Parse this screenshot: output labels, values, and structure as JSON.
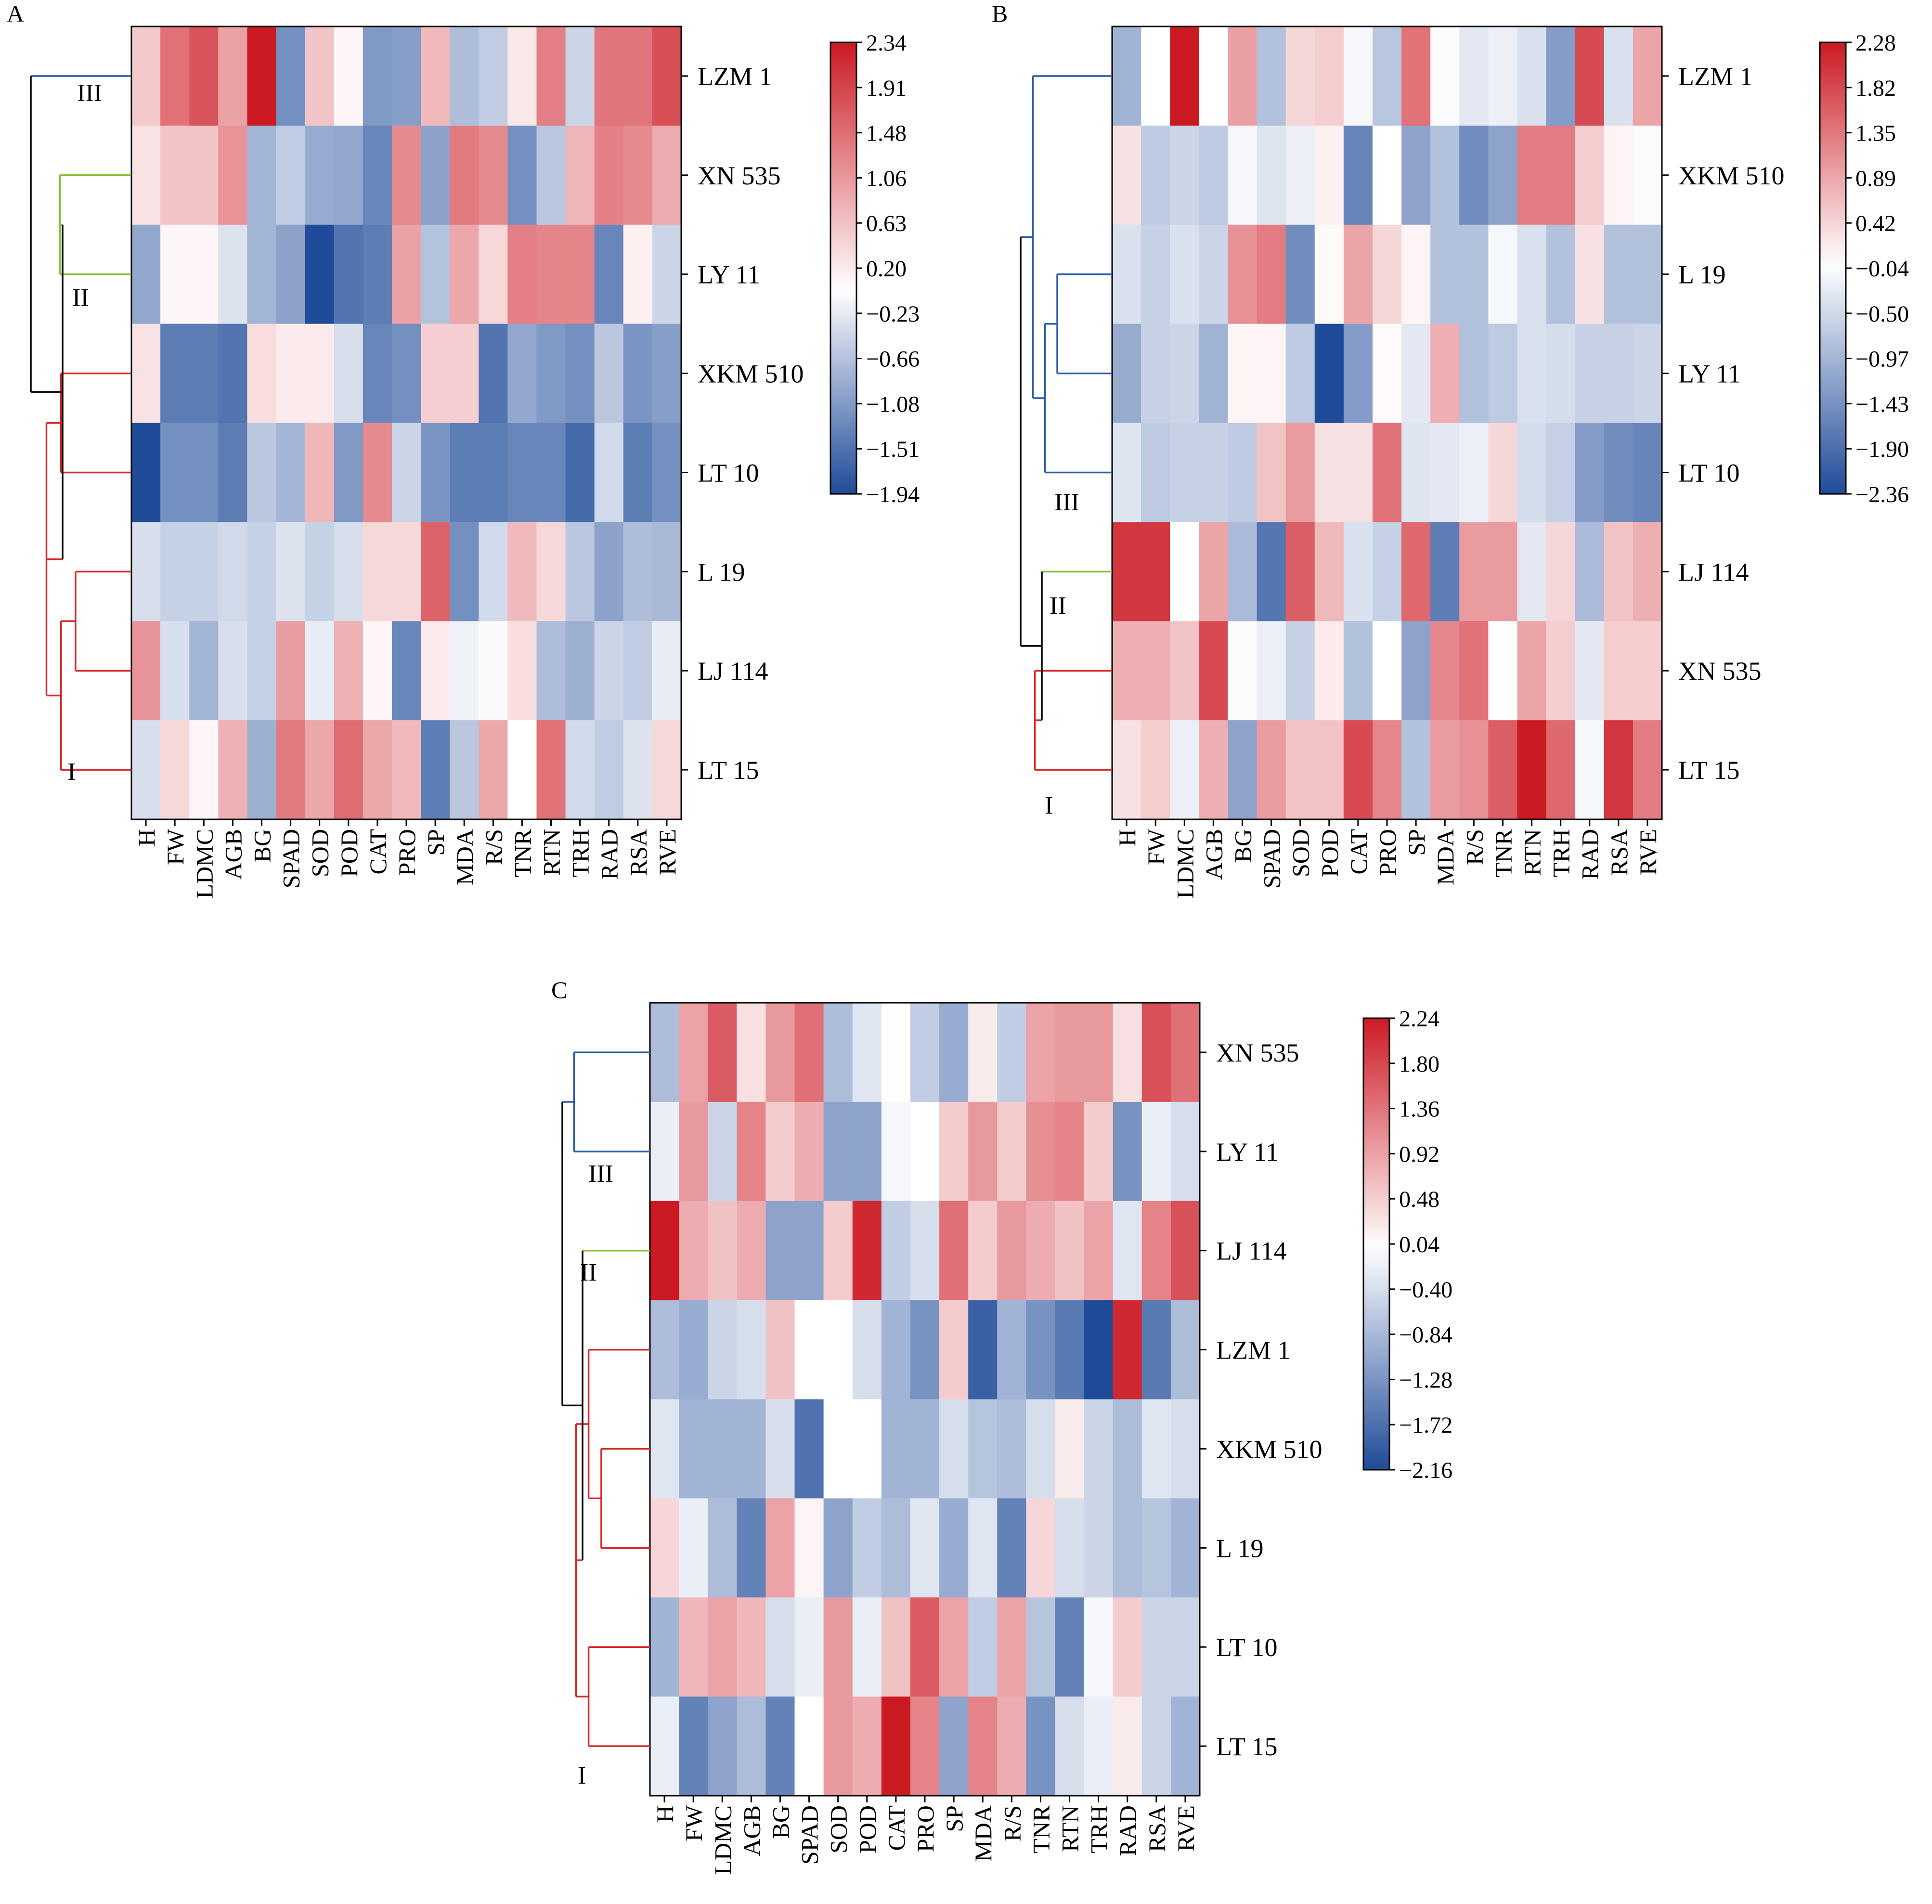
{
  "chart_data": [
    {
      "type": "heatmap",
      "panel_label": "A",
      "columns": [
        "H",
        "FW",
        "LDMC",
        "AGB",
        "BG",
        "SPAD",
        "SOD",
        "POD",
        "CAT",
        "PRO",
        "SP",
        "MDA",
        "R/S",
        "TNR",
        "RTN",
        "TRH",
        "RAD",
        "RSA",
        "RVE"
      ],
      "rows": [
        "LZM 1",
        "XN 535",
        "LY 11",
        "XKM 510",
        "LT 10",
        "L 19",
        "LJ 114",
        "LT 15"
      ],
      "values": [
        [
          0.55,
          1.45,
          1.75,
          0.95,
          2.34,
          -1.2,
          0.6,
          0.1,
          -1.1,
          -1.05,
          0.7,
          -0.7,
          -0.55,
          0.25,
          1.3,
          -0.45,
          1.4,
          1.4,
          1.8
        ],
        [
          0.3,
          0.6,
          0.6,
          1.1,
          -0.8,
          -0.55,
          -0.9,
          -0.95,
          -1.3,
          1.2,
          -1.0,
          1.35,
          1.2,
          -1.2,
          -0.6,
          0.75,
          1.3,
          1.2,
          0.85
        ],
        [
          -0.95,
          0.1,
          0.1,
          -0.3,
          -0.8,
          -1.0,
          -1.94,
          -1.5,
          -1.4,
          0.95,
          -0.65,
          0.9,
          0.4,
          1.3,
          1.25,
          1.25,
          -1.3,
          0.15,
          -0.45
        ],
        [
          0.3,
          -1.4,
          -1.4,
          -1.5,
          0.35,
          0.2,
          0.2,
          -0.35,
          -1.3,
          -1.2,
          0.5,
          0.5,
          -1.5,
          -0.95,
          -1.1,
          -1.2,
          -0.6,
          -1.15,
          -1.05
        ],
        [
          -1.94,
          -1.2,
          -1.2,
          -1.4,
          -0.6,
          -0.8,
          0.75,
          -1.1,
          1.2,
          -0.45,
          -1.15,
          -1.4,
          -1.4,
          -1.3,
          -1.3,
          -1.6,
          -0.4,
          -1.4,
          -1.2
        ],
        [
          -0.35,
          -0.5,
          -0.5,
          -0.4,
          -0.5,
          -0.3,
          -0.5,
          -0.35,
          0.4,
          0.4,
          1.6,
          -1.2,
          -0.4,
          0.7,
          0.4,
          -0.6,
          -1.0,
          -0.7,
          -0.75
        ],
        [
          1.1,
          -0.35,
          -0.8,
          -0.35,
          -0.5,
          1.0,
          -0.2,
          0.8,
          0.1,
          -1.3,
          0.2,
          -0.15,
          -0.05,
          0.35,
          -0.7,
          -0.85,
          -0.45,
          -0.55,
          -0.2
        ],
        [
          -0.35,
          0.4,
          0.1,
          0.8,
          -0.85,
          1.35,
          0.9,
          1.5,
          0.9,
          0.7,
          -1.4,
          -0.6,
          0.9,
          0.0,
          1.45,
          -0.4,
          -0.55,
          -0.3,
          0.4
        ]
      ],
      "scale": {
        "min": -1.94,
        "max": 2.34
      },
      "colorbar_ticks": [
        "2.34",
        "1.91",
        "1.48",
        "1.06",
        "0.63",
        "0.20",
        "−0.23",
        "−0.66",
        "−1.08",
        "−1.51",
        "−1.94"
      ],
      "cluster_labels": [
        "III",
        "II",
        "I"
      ],
      "colors": {
        "low": "#1f4b99",
        "mid": "#ffffff",
        "high": "#cc1a23",
        "cluster_I": "#d62728",
        "cluster_II": "#7fbf2d",
        "cluster_III": "#2a5caa",
        "root": "#000000"
      }
    },
    {
      "type": "heatmap",
      "panel_label": "B",
      "columns": [
        "H",
        "FW",
        "LDMC",
        "AGB",
        "BG",
        "SPAD",
        "SOD",
        "POD",
        "CAT",
        "PRO",
        "SP",
        "MDA",
        "R/S",
        "TNR",
        "RTN",
        "TRH",
        "RAD",
        "RSA",
        "RVE"
      ],
      "rows": [
        "LZM 1",
        "XKM 510",
        "L 19",
        "LY 11",
        "LT 10",
        "LJ 114",
        "XN 535",
        "LT 15"
      ],
      "values": [
        [
          -1.0,
          0.0,
          2.28,
          0.0,
          0.95,
          -0.8,
          0.4,
          0.5,
          -0.1,
          -0.75,
          1.4,
          -0.05,
          -0.3,
          -0.2,
          -0.4,
          -1.3,
          1.8,
          -0.4,
          0.9
        ],
        [
          0.3,
          -0.7,
          -0.55,
          -0.7,
          -0.1,
          -0.35,
          -0.2,
          0.15,
          -1.6,
          0.0,
          -1.2,
          -0.8,
          -1.5,
          -1.2,
          1.3,
          1.3,
          0.5,
          0.1,
          -0.05
        ],
        [
          -0.4,
          -0.6,
          -0.4,
          -0.55,
          1.1,
          1.3,
          -1.5,
          0.05,
          0.9,
          0.4,
          0.1,
          -0.8,
          -0.8,
          -0.1,
          -0.4,
          -0.8,
          0.3,
          -0.8,
          -0.8
        ],
        [
          -1.1,
          -0.6,
          -0.55,
          -1.0,
          0.1,
          0.1,
          -0.7,
          -2.36,
          -1.3,
          0.05,
          -0.3,
          0.8,
          -0.8,
          -0.7,
          -0.4,
          -0.45,
          -0.6,
          -0.6,
          -0.55
        ],
        [
          -0.35,
          -0.7,
          -0.6,
          -0.6,
          -0.7,
          0.6,
          1.0,
          0.3,
          0.3,
          1.4,
          -0.35,
          -0.3,
          -0.2,
          0.4,
          -0.45,
          -0.6,
          -1.3,
          -1.5,
          -1.6
        ],
        [
          2.0,
          2.0,
          0.0,
          0.9,
          -0.9,
          -1.8,
          1.6,
          0.7,
          -0.4,
          -0.6,
          1.5,
          -1.7,
          1.0,
          1.0,
          -0.3,
          0.4,
          -0.9,
          0.6,
          0.8
        ],
        [
          0.8,
          0.8,
          0.6,
          1.8,
          -0.05,
          -0.2,
          -0.6,
          0.2,
          -0.8,
          0.0,
          -1.2,
          1.2,
          1.4,
          0.0,
          0.9,
          0.5,
          -0.3,
          0.5,
          0.5
        ],
        [
          0.3,
          0.5,
          -0.2,
          0.8,
          -1.2,
          1.0,
          0.6,
          0.6,
          1.8,
          1.2,
          -0.8,
          1.0,
          1.1,
          1.6,
          2.28,
          1.5,
          -0.1,
          2.0,
          1.3
        ]
      ],
      "scale": {
        "min": -2.36,
        "max": 2.28
      },
      "colorbar_ticks": [
        "2.28",
        "1.82",
        "1.35",
        "0.89",
        "0.42",
        "−0.04",
        "−0.50",
        "−0.97",
        "−1.43",
        "−1.90",
        "−2.36"
      ],
      "cluster_labels": [
        "III",
        "II",
        "I"
      ],
      "colors": {
        "low": "#1f4b99",
        "mid": "#ffffff",
        "high": "#cc1a23",
        "cluster_I": "#d62728",
        "cluster_II": "#7fbf2d",
        "cluster_III": "#2a5caa",
        "root": "#000000"
      }
    },
    {
      "type": "heatmap",
      "panel_label": "C",
      "columns": [
        "H",
        "FW",
        "LDMC",
        "AGB",
        "BG",
        "SPAD",
        "SOD",
        "POD",
        "CAT",
        "PRO",
        "SP",
        "MDA",
        "R/S",
        "TNR",
        "RTN",
        "TRH",
        "RAD",
        "RSA",
        "RVE"
      ],
      "rows": [
        "XN 535",
        "LY 11",
        "LJ 114",
        "LZM 1",
        "XKM 510",
        "L 19",
        "LT 10",
        "LT 15"
      ],
      "values": [
        [
          -0.8,
          0.9,
          1.6,
          0.3,
          1.0,
          1.4,
          -0.8,
          -0.3,
          0.0,
          -0.6,
          -1.0,
          0.2,
          -0.6,
          0.9,
          1.0,
          1.0,
          0.3,
          1.7,
          1.4
        ],
        [
          -0.2,
          1.0,
          -0.5,
          1.2,
          0.5,
          0.8,
          -1.1,
          -1.1,
          -0.1,
          0.0,
          0.5,
          1.0,
          0.5,
          1.1,
          1.2,
          0.5,
          -1.3,
          -0.2,
          -0.4
        ],
        [
          2.24,
          0.8,
          0.6,
          0.8,
          -1.1,
          -1.1,
          0.5,
          2.1,
          -0.6,
          -0.4,
          1.4,
          0.5,
          1.0,
          0.8,
          0.6,
          0.9,
          -0.3,
          1.2,
          1.7
        ],
        [
          -0.8,
          -1.0,
          -0.5,
          -0.4,
          0.6,
          0.0,
          0.0,
          -0.4,
          -0.9,
          -1.3,
          0.5,
          -1.9,
          -0.9,
          -1.3,
          -1.6,
          -2.16,
          2.1,
          -1.6,
          -0.8
        ],
        [
          -0.3,
          -0.9,
          -0.9,
          -0.9,
          -0.4,
          -1.7,
          0.0,
          0.0,
          -0.9,
          -0.9,
          -0.4,
          -0.7,
          -0.8,
          -0.4,
          0.2,
          -0.5,
          -0.8,
          -0.3,
          -0.4
        ],
        [
          0.4,
          -0.2,
          -0.8,
          -1.5,
          0.9,
          0.1,
          -1.1,
          -0.6,
          -0.8,
          -0.3,
          -1.0,
          -0.3,
          -1.5,
          0.4,
          -0.4,
          -0.5,
          -0.8,
          -0.7,
          -0.9
        ],
        [
          -0.9,
          0.7,
          0.9,
          0.7,
          -0.4,
          -0.2,
          1.0,
          -0.2,
          0.6,
          1.6,
          0.9,
          -0.6,
          0.9,
          -0.7,
          -1.5,
          -0.1,
          0.5,
          -0.5,
          -0.5
        ],
        [
          -0.2,
          -1.5,
          -1.1,
          -0.8,
          -1.5,
          0.0,
          1.0,
          0.8,
          2.24,
          1.2,
          -1.1,
          1.2,
          0.8,
          -1.3,
          -0.4,
          -0.2,
          0.2,
          -0.5,
          -0.9
        ]
      ],
      "scale": {
        "min": -2.16,
        "max": 2.24
      },
      "colorbar_ticks": [
        "2.24",
        "1.80",
        "1.36",
        "0.92",
        "0.48",
        "0.04",
        "−0.40",
        "−0.84",
        "−1.28",
        "−1.72",
        "−2.16"
      ],
      "cluster_labels": [
        "III",
        "II",
        "I"
      ],
      "colors": {
        "low": "#1f4b99",
        "mid": "#ffffff",
        "high": "#cc1a23",
        "cluster_I": "#d62728",
        "cluster_II": "#7fbf2d",
        "cluster_III": "#2a5caa",
        "root": "#000000"
      }
    }
  ]
}
